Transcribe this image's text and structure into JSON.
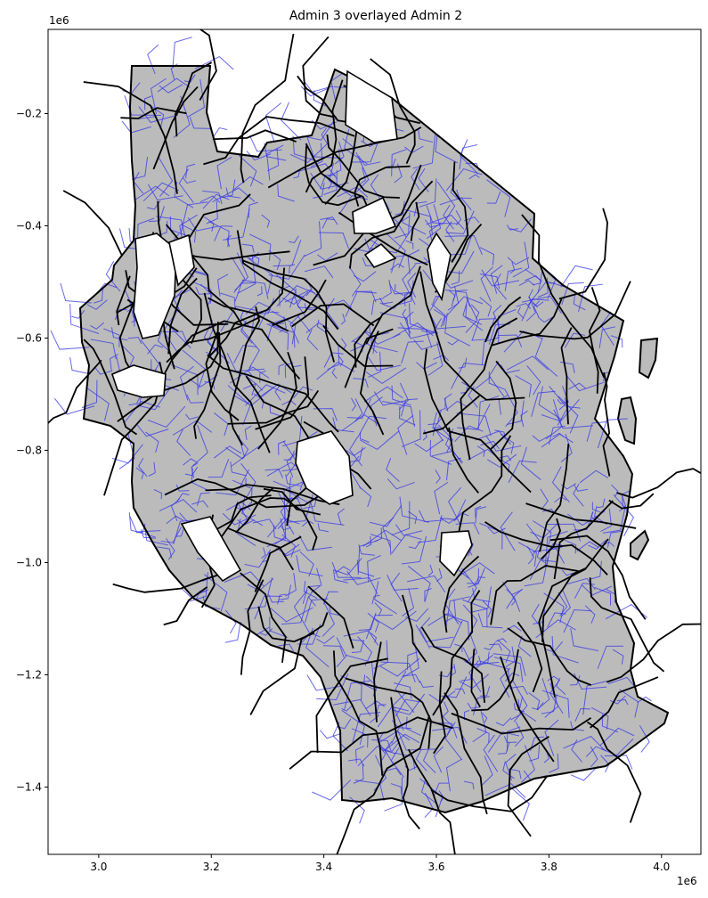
{
  "chart_data": {
    "type": "map",
    "title": "Admin 3 overlayed Admin 2",
    "xlabel": "",
    "ylabel": "",
    "x_offset_label": "1e6",
    "y_offset_label": "1e6",
    "xlim": [
      2.91,
      4.07
    ],
    "ylim": [
      -1.52,
      -0.05
    ],
    "x_ticks": [
      {
        "value": 3.0,
        "label": "3.0"
      },
      {
        "value": 3.2,
        "label": "3.2"
      },
      {
        "value": 3.4,
        "label": "3.4"
      },
      {
        "value": 3.6,
        "label": "3.6"
      },
      {
        "value": 3.8,
        "label": "3.8"
      },
      {
        "value": 4.0,
        "label": "4.0"
      }
    ],
    "y_ticks": [
      {
        "value": -0.2,
        "label": "−0.2"
      },
      {
        "value": -0.4,
        "label": "−0.4"
      },
      {
        "value": -0.6,
        "label": "−0.6"
      },
      {
        "value": -0.8,
        "label": "−0.8"
      },
      {
        "value": -1.0,
        "label": "−1.0"
      },
      {
        "value": -1.2,
        "label": "−1.2"
      },
      {
        "value": -1.4,
        "label": "−1.4"
      }
    ],
    "layers": [
      {
        "name": "Admin 3",
        "fill": "#7b7bd6",
        "edge": "#3535e8"
      },
      {
        "name": "Admin 2",
        "fill": "#bbbbbb",
        "edge": "#000000"
      }
    ],
    "grid": false
  }
}
